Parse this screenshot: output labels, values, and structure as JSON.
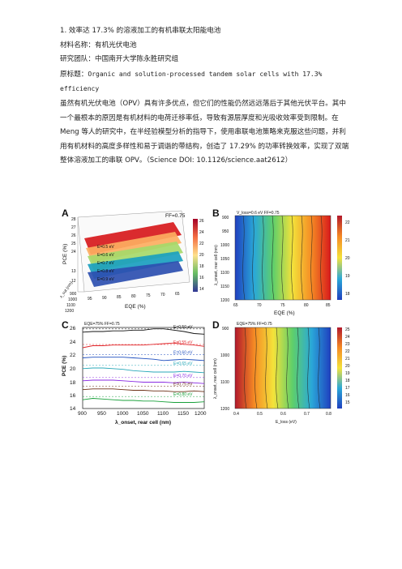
{
  "article": {
    "heading": "1. 效率达 17.3% 的溶液加工的有机串联太阳能电池",
    "material_line": "材料名称：有机光伏电池",
    "team_line": "研究团队：中国南开大学陈永胜研究组",
    "original_title_prefix": "原标题：",
    "original_title": "Organic and solution-processed tandem solar cells with 17.3% efficiency",
    "paragraph": "虽然有机光伏电池（OPV）具有许多优点，但它们的性能仍然远远落后于其他光伏平台。其中一个最根本的原因是有机材料的电荷迁移率低，导致有源层厚度和光吸收效率受到限制。在 Meng 等人的研究中，在半经验模型分析的指导下，使用串联电池策略来克服这些问题，并利用有机材料的高度多样性和易于调谐的带结构，创造了 17.29% 的功率转换效率，实现了双端整体溶液加工的串联 OPV。（Science DOI: 10.1126/science.aat2612）"
  },
  "figure": {
    "panels": {
      "A": {
        "letter": "A",
        "annotation": "FF=0.75",
        "zlabel": "PCE (%)",
        "xlabel": "EQE (%)",
        "ylabel": "λ_cut (nm)",
        "z_ticks": [
          "28",
          "27",
          "26",
          "25",
          "24",
          "13",
          "12"
        ],
        "x_ticks": [
          "95",
          "90",
          "85",
          "80",
          "75",
          "70",
          "65"
        ],
        "y_ticks": [
          "900",
          "1000",
          "1100",
          "1200"
        ],
        "layer_labels": [
          "E=0.5 eV",
          "E=0.6 eV",
          "E=0.7 eV",
          "E=0.8 eV",
          "E=0.9 eV"
        ],
        "colorbar_ticks": [
          "26",
          "24",
          "22",
          "20",
          "18",
          "16",
          "14"
        ]
      },
      "B": {
        "letter": "B",
        "annotation": "V_loss=0.6 eV  FF=0.75",
        "xlabel": "EQE (%)",
        "ylabel": "λ_onset, rear cell (nm)",
        "x_ticks": [
          "65",
          "70",
          "75",
          "80",
          "85"
        ],
        "y_ticks": [
          "900",
          "950",
          "1000",
          "1050",
          "1100",
          "1150",
          "1200"
        ],
        "colorbar_ticks": [
          "22",
          "21",
          "20",
          "19",
          "18"
        ]
      },
      "C": {
        "letter": "C",
        "annotation": "EQE=75% FF=0.75",
        "xlabel": "λ_onset, rear cell (nm)",
        "ylabel": "PCE (%)",
        "x_ticks": [
          "900",
          "950",
          "1000",
          "1050",
          "1100",
          "1150",
          "1200"
        ],
        "y_ticks": [
          "26",
          "24",
          "22",
          "20",
          "18",
          "16",
          "14"
        ],
        "legend": [
          "E=0.50 eV",
          "E=0.55 eV",
          "E=0.60 eV",
          "E=0.65 eV",
          "E=0.70 eV",
          "E=0.75 eV",
          "E=0.80 eV"
        ]
      },
      "D": {
        "letter": "D",
        "annotation": "EQE=75% FF=0.75",
        "xlabel": "E_loss (eV)",
        "ylabel": "λ_onset, rear cell (nm)",
        "x_ticks": [
          "0.4",
          "0.5",
          "0.6",
          "0.7",
          "0.8"
        ],
        "y_ticks": [
          "900",
          "1000",
          "1100",
          "1200"
        ],
        "colorbar_ticks": [
          "25",
          "24",
          "23",
          "22",
          "21",
          "20",
          "19",
          "18",
          "17",
          "16",
          "15"
        ]
      }
    },
    "series_colors": [
      "#111111",
      "#e0262a",
      "#1f4fbf",
      "#28a8b8",
      "#8a2be2",
      "#6b2f14",
      "#18a03a"
    ],
    "pce_curves": [
      [
        25.3,
        25.4,
        25.4,
        25.5,
        25.5,
        25.6,
        25.6,
        25.8,
        25.8,
        25.6,
        25.4,
        25.1,
        25.0
      ],
      [
        23.0,
        23.3,
        23.3,
        23.4,
        23.4,
        23.4,
        23.4,
        23.5,
        23.6,
        23.7,
        23.5,
        23.4,
        23.2
      ],
      [
        21.5,
        21.6,
        21.6,
        21.6,
        21.6,
        21.5,
        21.4,
        21.3,
        21.1,
        21.2,
        21.3,
        21.2,
        21.1
      ],
      [
        19.9,
        20.0,
        20.0,
        19.9,
        19.8,
        19.6,
        19.5,
        19.4,
        19.4,
        19.4,
        19.5,
        19.4,
        19.3
      ],
      [
        18.1,
        18.2,
        18.2,
        18.2,
        18.1,
        18.0,
        17.9,
        17.9,
        17.9,
        17.8,
        17.9,
        17.8,
        17.7
      ],
      [
        16.8,
        16.9,
        16.9,
        16.9,
        16.8,
        16.7,
        16.7,
        16.6,
        16.6,
        16.5,
        16.5,
        16.6,
        16.5
      ],
      [
        15.3,
        15.5,
        15.4,
        15.3,
        15.2,
        15.2,
        15.1,
        15.1,
        15.0,
        14.9,
        14.9,
        14.9,
        15.0
      ]
    ]
  }
}
